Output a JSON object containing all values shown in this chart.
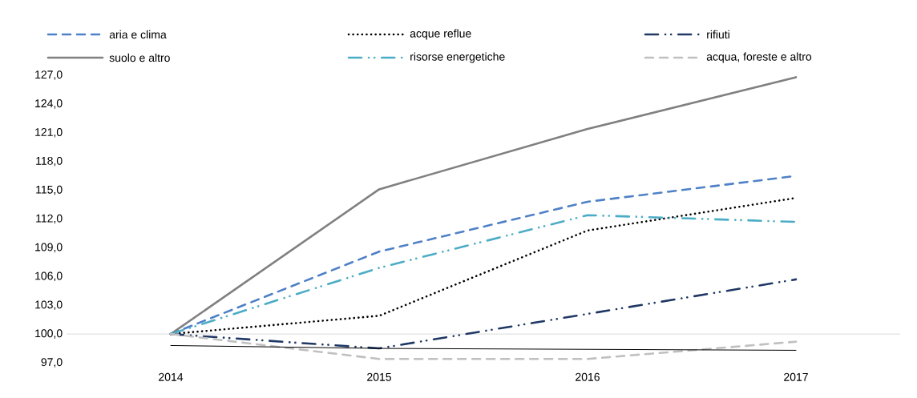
{
  "chart_data": {
    "type": "line",
    "categories": [
      "2014",
      "2015",
      "2016",
      "2017"
    ],
    "ylim": [
      97,
      127
    ],
    "yticks": [
      {
        "value": 97,
        "label": "97,0"
      },
      {
        "value": 100,
        "label": "100,0"
      },
      {
        "value": 103,
        "label": "103,0"
      },
      {
        "value": 106,
        "label": "106,0"
      },
      {
        "value": 109,
        "label": "109,0"
      },
      {
        "value": 112,
        "label": "112,0"
      },
      {
        "value": 115,
        "label": "115,0"
      },
      {
        "value": 118,
        "label": "118,0"
      },
      {
        "value": 121,
        "label": "121,0"
      },
      {
        "value": 124,
        "label": "124,0"
      },
      {
        "value": 127,
        "label": "127,0"
      }
    ],
    "grid": false,
    "legend": "top",
    "marker": "none",
    "ref_lines": [
      {
        "axis": "y",
        "value": 100,
        "color": "#d9d9d9"
      }
    ],
    "series": [
      {
        "name": "aria e clima",
        "color": "#4f81c7",
        "line_style": "dashed",
        "values": [
          100,
          108.6,
          113.8,
          116.5
        ]
      },
      {
        "name": "acque reflue",
        "color": "#000000",
        "line_style": "dotted",
        "values": [
          100,
          101.9,
          110.8,
          114.2
        ]
      },
      {
        "name": "rifiuti",
        "color": "#1f3864",
        "line_style": "dashdot",
        "values": [
          100,
          98.5,
          102.1,
          105.7
        ]
      },
      {
        "name": "suolo e altro",
        "color": "#808080",
        "line_style": "solid",
        "values": [
          100,
          115.1,
          121.4,
          126.8
        ]
      },
      {
        "name": "risorse energetiche",
        "color": "#4bacc6",
        "line_style": "dashdot",
        "values": [
          100,
          106.9,
          112.4,
          111.7
        ]
      },
      {
        "name": "acqua, foreste e altro",
        "color": "#c0c0c0",
        "line_style": "dashed",
        "values": [
          100,
          97.4,
          97.4,
          99.2
        ]
      },
      {
        "color": "#000000",
        "line_style": "solid",
        "values": [
          98.8,
          98.5,
          98.4,
          98.3
        ]
      }
    ]
  }
}
